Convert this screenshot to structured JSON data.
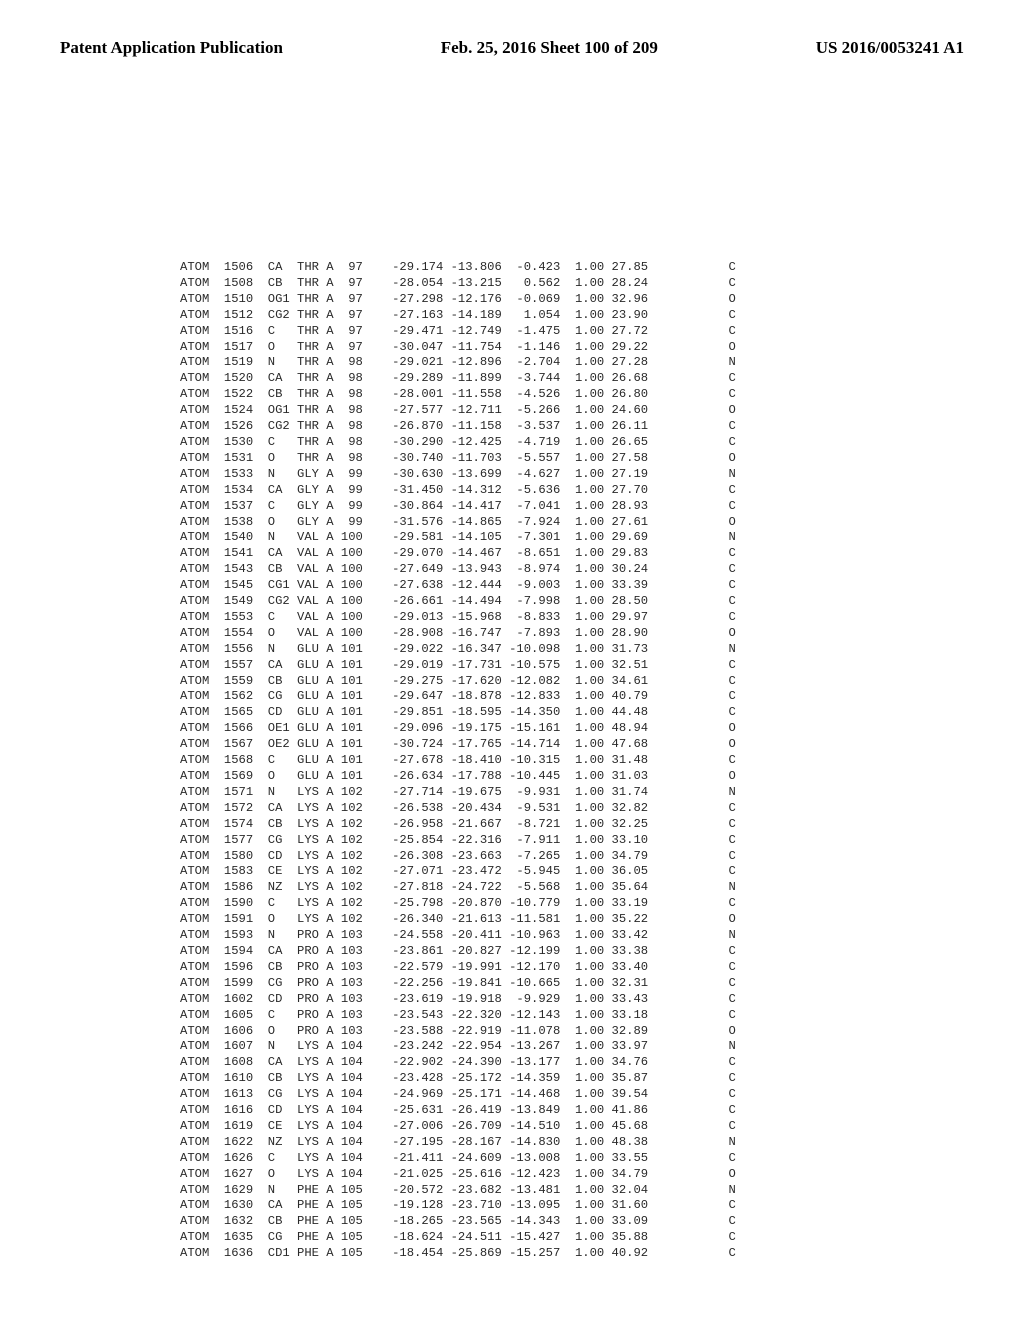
{
  "header": {
    "left": "Patent Application Publication",
    "center": "Feb. 25, 2016  Sheet 100 of 209",
    "right": "US 2016/0053241 A1"
  },
  "pdb": {
    "font_family": "Courier New",
    "font_size_pt": 9,
    "text_color": "#2a2a2a",
    "background_color": "#ffffff",
    "columns": [
      "record",
      "serial",
      "atom",
      "res",
      "chain",
      "resSeq",
      "x",
      "y",
      "z",
      "occ",
      "bfac",
      "elem"
    ],
    "col_widths_ch": [
      4,
      8,
      5,
      4,
      2,
      4,
      12,
      8,
      8,
      6,
      6,
      12
    ],
    "rows": [
      [
        "ATOM",
        "1506",
        "CA",
        "THR",
        "A",
        "97",
        "-29.174",
        "-13.806",
        "-0.423",
        "1.00",
        "27.85",
        "C"
      ],
      [
        "ATOM",
        "1508",
        "CB",
        "THR",
        "A",
        "97",
        "-28.054",
        "-13.215",
        "0.562",
        "1.00",
        "28.24",
        "C"
      ],
      [
        "ATOM",
        "1510",
        "OG1",
        "THR",
        "A",
        "97",
        "-27.298",
        "-12.176",
        "-0.069",
        "1.00",
        "32.96",
        "O"
      ],
      [
        "ATOM",
        "1512",
        "CG2",
        "THR",
        "A",
        "97",
        "-27.163",
        "-14.189",
        "1.054",
        "1.00",
        "23.90",
        "C"
      ],
      [
        "ATOM",
        "1516",
        "C",
        "THR",
        "A",
        "97",
        "-29.471",
        "-12.749",
        "-1.475",
        "1.00",
        "27.72",
        "C"
      ],
      [
        "ATOM",
        "1517",
        "O",
        "THR",
        "A",
        "97",
        "-30.047",
        "-11.754",
        "-1.146",
        "1.00",
        "29.22",
        "O"
      ],
      [
        "ATOM",
        "1519",
        "N",
        "THR",
        "A",
        "98",
        "-29.021",
        "-12.896",
        "-2.704",
        "1.00",
        "27.28",
        "N"
      ],
      [
        "ATOM",
        "1520",
        "CA",
        "THR",
        "A",
        "98",
        "-29.289",
        "-11.899",
        "-3.744",
        "1.00",
        "26.68",
        "C"
      ],
      [
        "ATOM",
        "1522",
        "CB",
        "THR",
        "A",
        "98",
        "-28.001",
        "-11.558",
        "-4.526",
        "1.00",
        "26.80",
        "C"
      ],
      [
        "ATOM",
        "1524",
        "OG1",
        "THR",
        "A",
        "98",
        "-27.577",
        "-12.711",
        "-5.266",
        "1.00",
        "24.60",
        "O"
      ],
      [
        "ATOM",
        "1526",
        "CG2",
        "THR",
        "A",
        "98",
        "-26.870",
        "-11.158",
        "-3.537",
        "1.00",
        "26.11",
        "C"
      ],
      [
        "ATOM",
        "1530",
        "C",
        "THR",
        "A",
        "98",
        "-30.290",
        "-12.425",
        "-4.719",
        "1.00",
        "26.65",
        "C"
      ],
      [
        "ATOM",
        "1531",
        "O",
        "THR",
        "A",
        "98",
        "-30.740",
        "-11.703",
        "-5.557",
        "1.00",
        "27.58",
        "O"
      ],
      [
        "ATOM",
        "1533",
        "N",
        "GLY",
        "A",
        "99",
        "-30.630",
        "-13.699",
        "-4.627",
        "1.00",
        "27.19",
        "N"
      ],
      [
        "ATOM",
        "1534",
        "CA",
        "GLY",
        "A",
        "99",
        "-31.450",
        "-14.312",
        "-5.636",
        "1.00",
        "27.70",
        "C"
      ],
      [
        "ATOM",
        "1537",
        "C",
        "GLY",
        "A",
        "99",
        "-30.864",
        "-14.417",
        "-7.041",
        "1.00",
        "28.93",
        "C"
      ],
      [
        "ATOM",
        "1538",
        "O",
        "GLY",
        "A",
        "99",
        "-31.576",
        "-14.865",
        "-7.924",
        "1.00",
        "27.61",
        "O"
      ],
      [
        "ATOM",
        "1540",
        "N",
        "VAL",
        "A",
        "100",
        "-29.581",
        "-14.105",
        "-7.301",
        "1.00",
        "29.69",
        "N"
      ],
      [
        "ATOM",
        "1541",
        "CA",
        "VAL",
        "A",
        "100",
        "-29.070",
        "-14.467",
        "-8.651",
        "1.00",
        "29.83",
        "C"
      ],
      [
        "ATOM",
        "1543",
        "CB",
        "VAL",
        "A",
        "100",
        "-27.649",
        "-13.943",
        "-8.974",
        "1.00",
        "30.24",
        "C"
      ],
      [
        "ATOM",
        "1545",
        "CG1",
        "VAL",
        "A",
        "100",
        "-27.638",
        "-12.444",
        "-9.003",
        "1.00",
        "33.39",
        "C"
      ],
      [
        "ATOM",
        "1549",
        "CG2",
        "VAL",
        "A",
        "100",
        "-26.661",
        "-14.494",
        "-7.998",
        "1.00",
        "28.50",
        "C"
      ],
      [
        "ATOM",
        "1553",
        "C",
        "VAL",
        "A",
        "100",
        "-29.013",
        "-15.968",
        "-8.833",
        "1.00",
        "29.97",
        "C"
      ],
      [
        "ATOM",
        "1554",
        "O",
        "VAL",
        "A",
        "100",
        "-28.908",
        "-16.747",
        "-7.893",
        "1.00",
        "28.90",
        "O"
      ],
      [
        "ATOM",
        "1556",
        "N",
        "GLU",
        "A",
        "101",
        "-29.022",
        "-16.347",
        "-10.098",
        "1.00",
        "31.73",
        "N"
      ],
      [
        "ATOM",
        "1557",
        "CA",
        "GLU",
        "A",
        "101",
        "-29.019",
        "-17.731",
        "-10.575",
        "1.00",
        "32.51",
        "C"
      ],
      [
        "ATOM",
        "1559",
        "CB",
        "GLU",
        "A",
        "101",
        "-29.275",
        "-17.620",
        "-12.082",
        "1.00",
        "34.61",
        "C"
      ],
      [
        "ATOM",
        "1562",
        "CG",
        "GLU",
        "A",
        "101",
        "-29.647",
        "-18.878",
        "-12.833",
        "1.00",
        "40.79",
        "C"
      ],
      [
        "ATOM",
        "1565",
        "CD",
        "GLU",
        "A",
        "101",
        "-29.851",
        "-18.595",
        "-14.350",
        "1.00",
        "44.48",
        "C"
      ],
      [
        "ATOM",
        "1566",
        "OE1",
        "GLU",
        "A",
        "101",
        "-29.096",
        "-19.175",
        "-15.161",
        "1.00",
        "48.94",
        "O"
      ],
      [
        "ATOM",
        "1567",
        "OE2",
        "GLU",
        "A",
        "101",
        "-30.724",
        "-17.765",
        "-14.714",
        "1.00",
        "47.68",
        "O"
      ],
      [
        "ATOM",
        "1568",
        "C",
        "GLU",
        "A",
        "101",
        "-27.678",
        "-18.410",
        "-10.315",
        "1.00",
        "31.48",
        "C"
      ],
      [
        "ATOM",
        "1569",
        "O",
        "GLU",
        "A",
        "101",
        "-26.634",
        "-17.788",
        "-10.445",
        "1.00",
        "31.03",
        "O"
      ],
      [
        "ATOM",
        "1571",
        "N",
        "LYS",
        "A",
        "102",
        "-27.714",
        "-19.675",
        "-9.931",
        "1.00",
        "31.74",
        "N"
      ],
      [
        "ATOM",
        "1572",
        "CA",
        "LYS",
        "A",
        "102",
        "-26.538",
        "-20.434",
        "-9.531",
        "1.00",
        "32.82",
        "C"
      ],
      [
        "ATOM",
        "1574",
        "CB",
        "LYS",
        "A",
        "102",
        "-26.958",
        "-21.667",
        "-8.721",
        "1.00",
        "32.25",
        "C"
      ],
      [
        "ATOM",
        "1577",
        "CG",
        "LYS",
        "A",
        "102",
        "-25.854",
        "-22.316",
        "-7.911",
        "1.00",
        "33.10",
        "C"
      ],
      [
        "ATOM",
        "1580",
        "CD",
        "LYS",
        "A",
        "102",
        "-26.308",
        "-23.663",
        "-7.265",
        "1.00",
        "34.79",
        "C"
      ],
      [
        "ATOM",
        "1583",
        "CE",
        "LYS",
        "A",
        "102",
        "-27.071",
        "-23.472",
        "-5.945",
        "1.00",
        "36.05",
        "C"
      ],
      [
        "ATOM",
        "1586",
        "NZ",
        "LYS",
        "A",
        "102",
        "-27.818",
        "-24.722",
        "-5.568",
        "1.00",
        "35.64",
        "N"
      ],
      [
        "ATOM",
        "1590",
        "C",
        "LYS",
        "A",
        "102",
        "-25.798",
        "-20.870",
        "-10.779",
        "1.00",
        "33.19",
        "C"
      ],
      [
        "ATOM",
        "1591",
        "O",
        "LYS",
        "A",
        "102",
        "-26.340",
        "-21.613",
        "-11.581",
        "1.00",
        "35.22",
        "O"
      ],
      [
        "ATOM",
        "1593",
        "N",
        "PRO",
        "A",
        "103",
        "-24.558",
        "-20.411",
        "-10.963",
        "1.00",
        "33.42",
        "N"
      ],
      [
        "ATOM",
        "1594",
        "CA",
        "PRO",
        "A",
        "103",
        "-23.861",
        "-20.827",
        "-12.199",
        "1.00",
        "33.38",
        "C"
      ],
      [
        "ATOM",
        "1596",
        "CB",
        "PRO",
        "A",
        "103",
        "-22.579",
        "-19.991",
        "-12.170",
        "1.00",
        "33.40",
        "C"
      ],
      [
        "ATOM",
        "1599",
        "CG",
        "PRO",
        "A",
        "103",
        "-22.256",
        "-19.841",
        "-10.665",
        "1.00",
        "32.31",
        "C"
      ],
      [
        "ATOM",
        "1602",
        "CD",
        "PRO",
        "A",
        "103",
        "-23.619",
        "-19.918",
        "-9.929",
        "1.00",
        "33.43",
        "C"
      ],
      [
        "ATOM",
        "1605",
        "C",
        "PRO",
        "A",
        "103",
        "-23.543",
        "-22.320",
        "-12.143",
        "1.00",
        "33.18",
        "C"
      ],
      [
        "ATOM",
        "1606",
        "O",
        "PRO",
        "A",
        "103",
        "-23.588",
        "-22.919",
        "-11.078",
        "1.00",
        "32.89",
        "O"
      ],
      [
        "ATOM",
        "1607",
        "N",
        "LYS",
        "A",
        "104",
        "-23.242",
        "-22.954",
        "-13.267",
        "1.00",
        "33.97",
        "N"
      ],
      [
        "ATOM",
        "1608",
        "CA",
        "LYS",
        "A",
        "104",
        "-22.902",
        "-24.390",
        "-13.177",
        "1.00",
        "34.76",
        "C"
      ],
      [
        "ATOM",
        "1610",
        "CB",
        "LYS",
        "A",
        "104",
        "-23.428",
        "-25.172",
        "-14.359",
        "1.00",
        "35.87",
        "C"
      ],
      [
        "ATOM",
        "1613",
        "CG",
        "LYS",
        "A",
        "104",
        "-24.969",
        "-25.171",
        "-14.468",
        "1.00",
        "39.54",
        "C"
      ],
      [
        "ATOM",
        "1616",
        "CD",
        "LYS",
        "A",
        "104",
        "-25.631",
        "-26.419",
        "-13.849",
        "1.00",
        "41.86",
        "C"
      ],
      [
        "ATOM",
        "1619",
        "CE",
        "LYS",
        "A",
        "104",
        "-27.006",
        "-26.709",
        "-14.510",
        "1.00",
        "45.68",
        "C"
      ],
      [
        "ATOM",
        "1622",
        "NZ",
        "LYS",
        "A",
        "104",
        "-27.195",
        "-28.167",
        "-14.830",
        "1.00",
        "48.38",
        "N"
      ],
      [
        "ATOM",
        "1626",
        "C",
        "LYS",
        "A",
        "104",
        "-21.411",
        "-24.609",
        "-13.008",
        "1.00",
        "33.55",
        "C"
      ],
      [
        "ATOM",
        "1627",
        "O",
        "LYS",
        "A",
        "104",
        "-21.025",
        "-25.616",
        "-12.423",
        "1.00",
        "34.79",
        "O"
      ],
      [
        "ATOM",
        "1629",
        "N",
        "PHE",
        "A",
        "105",
        "-20.572",
        "-23.682",
        "-13.481",
        "1.00",
        "32.04",
        "N"
      ],
      [
        "ATOM",
        "1630",
        "CA",
        "PHE",
        "A",
        "105",
        "-19.128",
        "-23.710",
        "-13.095",
        "1.00",
        "31.60",
        "C"
      ],
      [
        "ATOM",
        "1632",
        "CB",
        "PHE",
        "A",
        "105",
        "-18.265",
        "-23.565",
        "-14.343",
        "1.00",
        "33.09",
        "C"
      ],
      [
        "ATOM",
        "1635",
        "CG",
        "PHE",
        "A",
        "105",
        "-18.624",
        "-24.511",
        "-15.427",
        "1.00",
        "35.88",
        "C"
      ],
      [
        "ATOM",
        "1636",
        "CD1",
        "PHE",
        "A",
        "105",
        "-18.454",
        "-25.869",
        "-15.257",
        "1.00",
        "40.92",
        "C"
      ]
    ]
  }
}
